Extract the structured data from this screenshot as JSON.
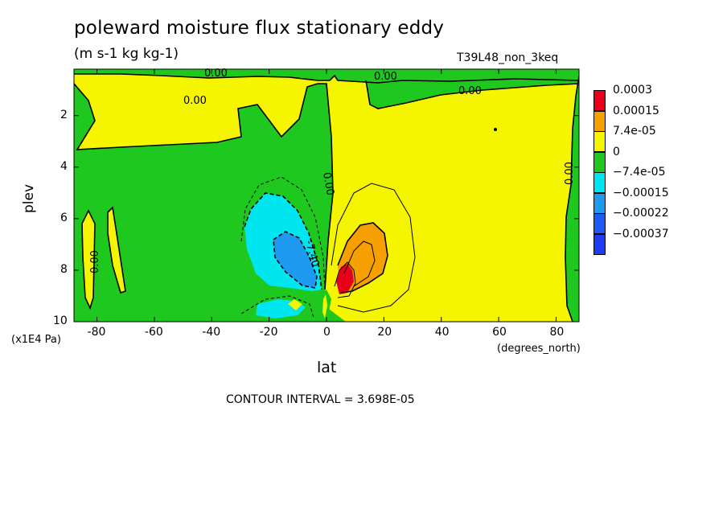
{
  "chart_data": {
    "type": "heatmap",
    "title": "poleward moisture flux stationary eddy",
    "units": "(m s-1 kg kg-1)",
    "run_label": "T39L48_non_3keq",
    "xlabel": "lat",
    "x_unit": "(degrees_north)",
    "ylabel": "plev",
    "y_unit": "(x1E4 Pa)",
    "xlim": [
      -88,
      88
    ],
    "ylim": [
      10,
      0.2
    ],
    "x_ticks": [
      "-80",
      "-60",
      "-40",
      "-20",
      "0",
      "20",
      "40",
      "60",
      "80"
    ],
    "x_tick_values": [
      -80,
      -60,
      -40,
      -20,
      0,
      20,
      40,
      60,
      80
    ],
    "y_ticks": [
      "2",
      "4",
      "6",
      "8",
      "10"
    ],
    "y_tick_values": [
      2,
      4,
      6,
      8,
      10
    ],
    "contour_interval_text": "CONTOUR INTERVAL = 3.698E-05",
    "contour_labels": [
      "0.00",
      "0.00",
      "0.00",
      "0.00",
      "0.00",
      "0.00",
      "0.00",
      "-7.40"
    ],
    "colorbar": [
      {
        "label": "0.0003",
        "color": "#e8001b"
      },
      {
        "label": "0.00015",
        "color": "#f5a000"
      },
      {
        "label": "7.4e-05",
        "color": "#f5f500"
      },
      {
        "label": "0",
        "color": "#1ec81e"
      },
      {
        "label": "−7.4e-05",
        "color": "#00e6f0"
      },
      {
        "label": "−0.00015",
        "color": "#1e9bf0"
      },
      {
        "label": "−0.00022",
        "color": "#1e5af5"
      },
      {
        "label": "−0.00037",
        "color": "#1e3cf5"
      }
    ],
    "regions": [
      {
        "name": "positive_flux_max",
        "lat_range": [
          2,
          10
        ],
        "plev_range": [
          7.2,
          9.0
        ],
        "level": "0.0003"
      },
      {
        "name": "positive_flux_core",
        "lat_range": [
          8,
          30
        ],
        "plev_range": [
          6.0,
          9.0
        ],
        "level": "0.00015"
      },
      {
        "name": "negative_flux_core",
        "lat_range": [
          -25,
          -5
        ],
        "plev_range": [
          5.5,
          9.0
        ],
        "level": "-0.00015"
      },
      {
        "name": "negative_flux_max",
        "lat_range": [
          -18,
          -8
        ],
        "plev_range": [
          6.8,
          8.5
        ],
        "level": "-0.00022"
      }
    ],
    "grid": false
  }
}
